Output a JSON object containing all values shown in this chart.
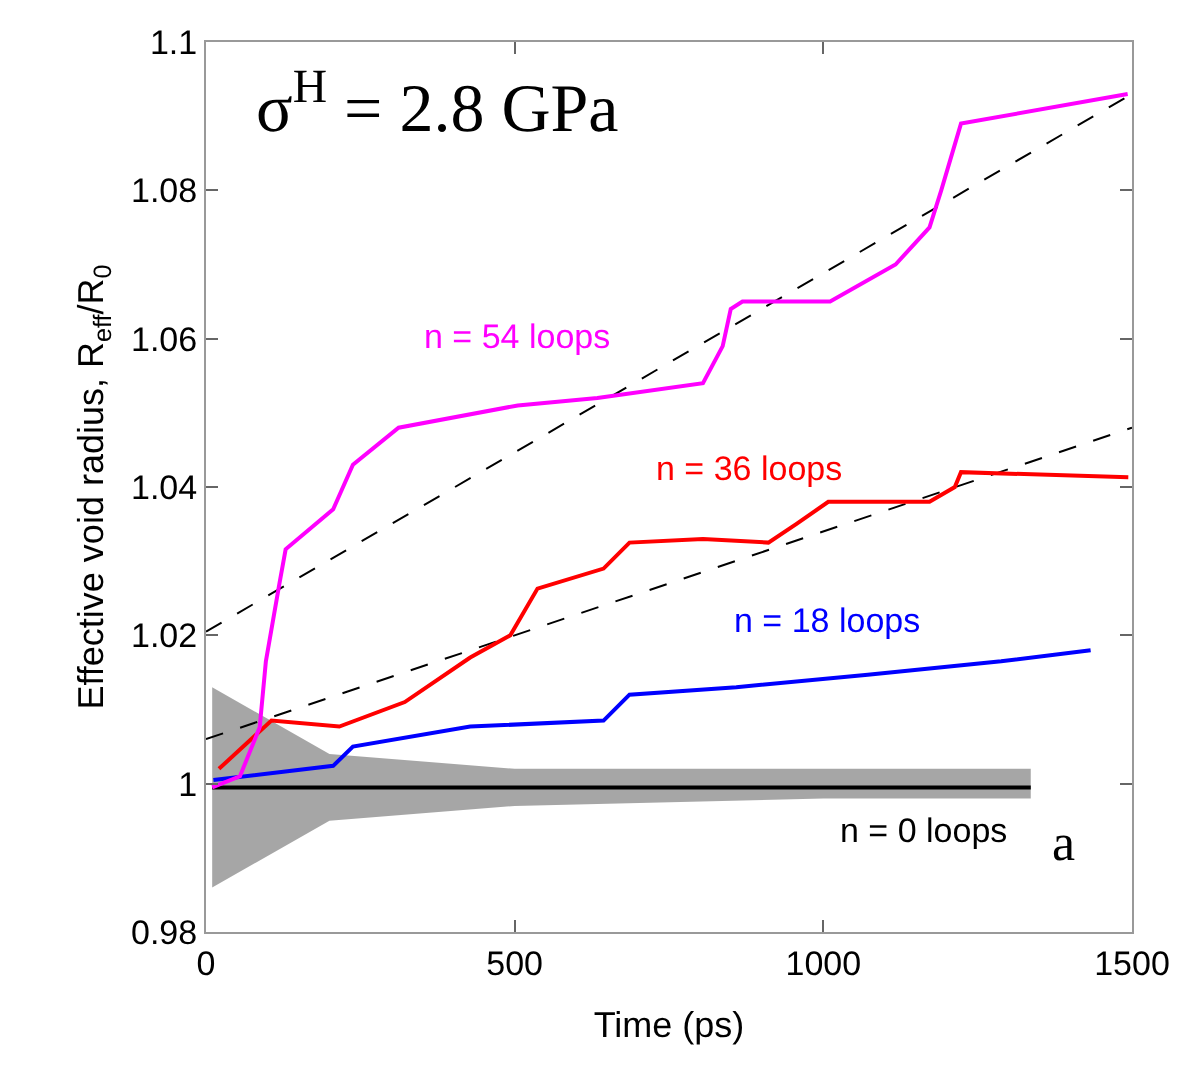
{
  "chart_data": {
    "type": "line",
    "xlabel": "Time (ps)",
    "ylabel": "Effective void radius, R$_{eff}$/R$_{0}$",
    "xlim": [
      0,
      1500
    ],
    "xticks": [
      0,
      500,
      1000,
      1500
    ],
    "ylim": [
      0.98,
      1.1
    ],
    "yticks": [
      0.98,
      1,
      1.02,
      1.04,
      1.06,
      1.08,
      1.1
    ],
    "legend": false,
    "line_style": "solid",
    "marker": "none",
    "series": [
      {
        "name": "n = 54 loops",
        "color": "#ff00ff",
        "x": [
          10,
          55,
          87,
          97,
          119,
          129,
          206,
          238,
          312,
          505,
          634,
          805,
          837,
          850,
          869,
          1011,
          1117,
          1172,
          1191,
          1223,
          1493
        ],
        "values": [
          0.9995,
          1.001,
          1.0076,
          1.0165,
          1.027,
          1.0316,
          1.037,
          1.043,
          1.048,
          1.051,
          1.052,
          1.054,
          1.059,
          1.064,
          1.065,
          1.065,
          1.07,
          1.075,
          1.08,
          1.089,
          1.093
        ]
      },
      {
        "name": "n = 36 loops",
        "color": "#ff0000",
        "x": [
          21,
          106,
          216,
          322,
          428,
          493,
          537,
          644,
          686,
          805,
          911,
          956,
          1008,
          1172,
          1213,
          1223,
          1494
        ],
        "values": [
          1.002,
          1.0085,
          1.0077,
          1.011,
          1.017,
          1.02,
          1.0263,
          1.029,
          1.0325,
          1.033,
          1.0325,
          1.035,
          1.038,
          1.038,
          1.04,
          1.042,
          1.0413
        ]
      },
      {
        "name": "n = 18 loops",
        "color": "#0000ff",
        "x": [
          12,
          206,
          238,
          428,
          644,
          686,
          859,
          1072,
          1288,
          1433
        ],
        "values": [
          1.0005,
          1.0024,
          1.005,
          1.0077,
          1.0085,
          1.012,
          1.013,
          1.0147,
          1.0165,
          1.018
        ]
      },
      {
        "name": "n = 0 loops",
        "color": "#000000",
        "x": [
          10,
          200,
          500,
          1000,
          1336
        ],
        "values": [
          0.9995,
          0.9995,
          0.9995,
          0.9995,
          0.9995
        ],
        "lower": [
          0.986,
          0.995,
          0.997,
          0.998,
          0.998
        ],
        "upper": [
          1.013,
          1.004,
          1.002,
          1.002,
          1.002
        ]
      },
      {
        "color": "#000000",
        "line_style": "dashed",
        "x": [
          0,
          1500
        ],
        "values": [
          1.0205,
          1.093
        ]
      },
      {
        "color": "#000000",
        "line_style": "dashed",
        "x": [
          0,
          1500
        ],
        "values": [
          1.006,
          1.048
        ]
      }
    ],
    "annotations": [
      "σ$^{H}$ = 2.8 GPa",
      "a"
    ]
  }
}
